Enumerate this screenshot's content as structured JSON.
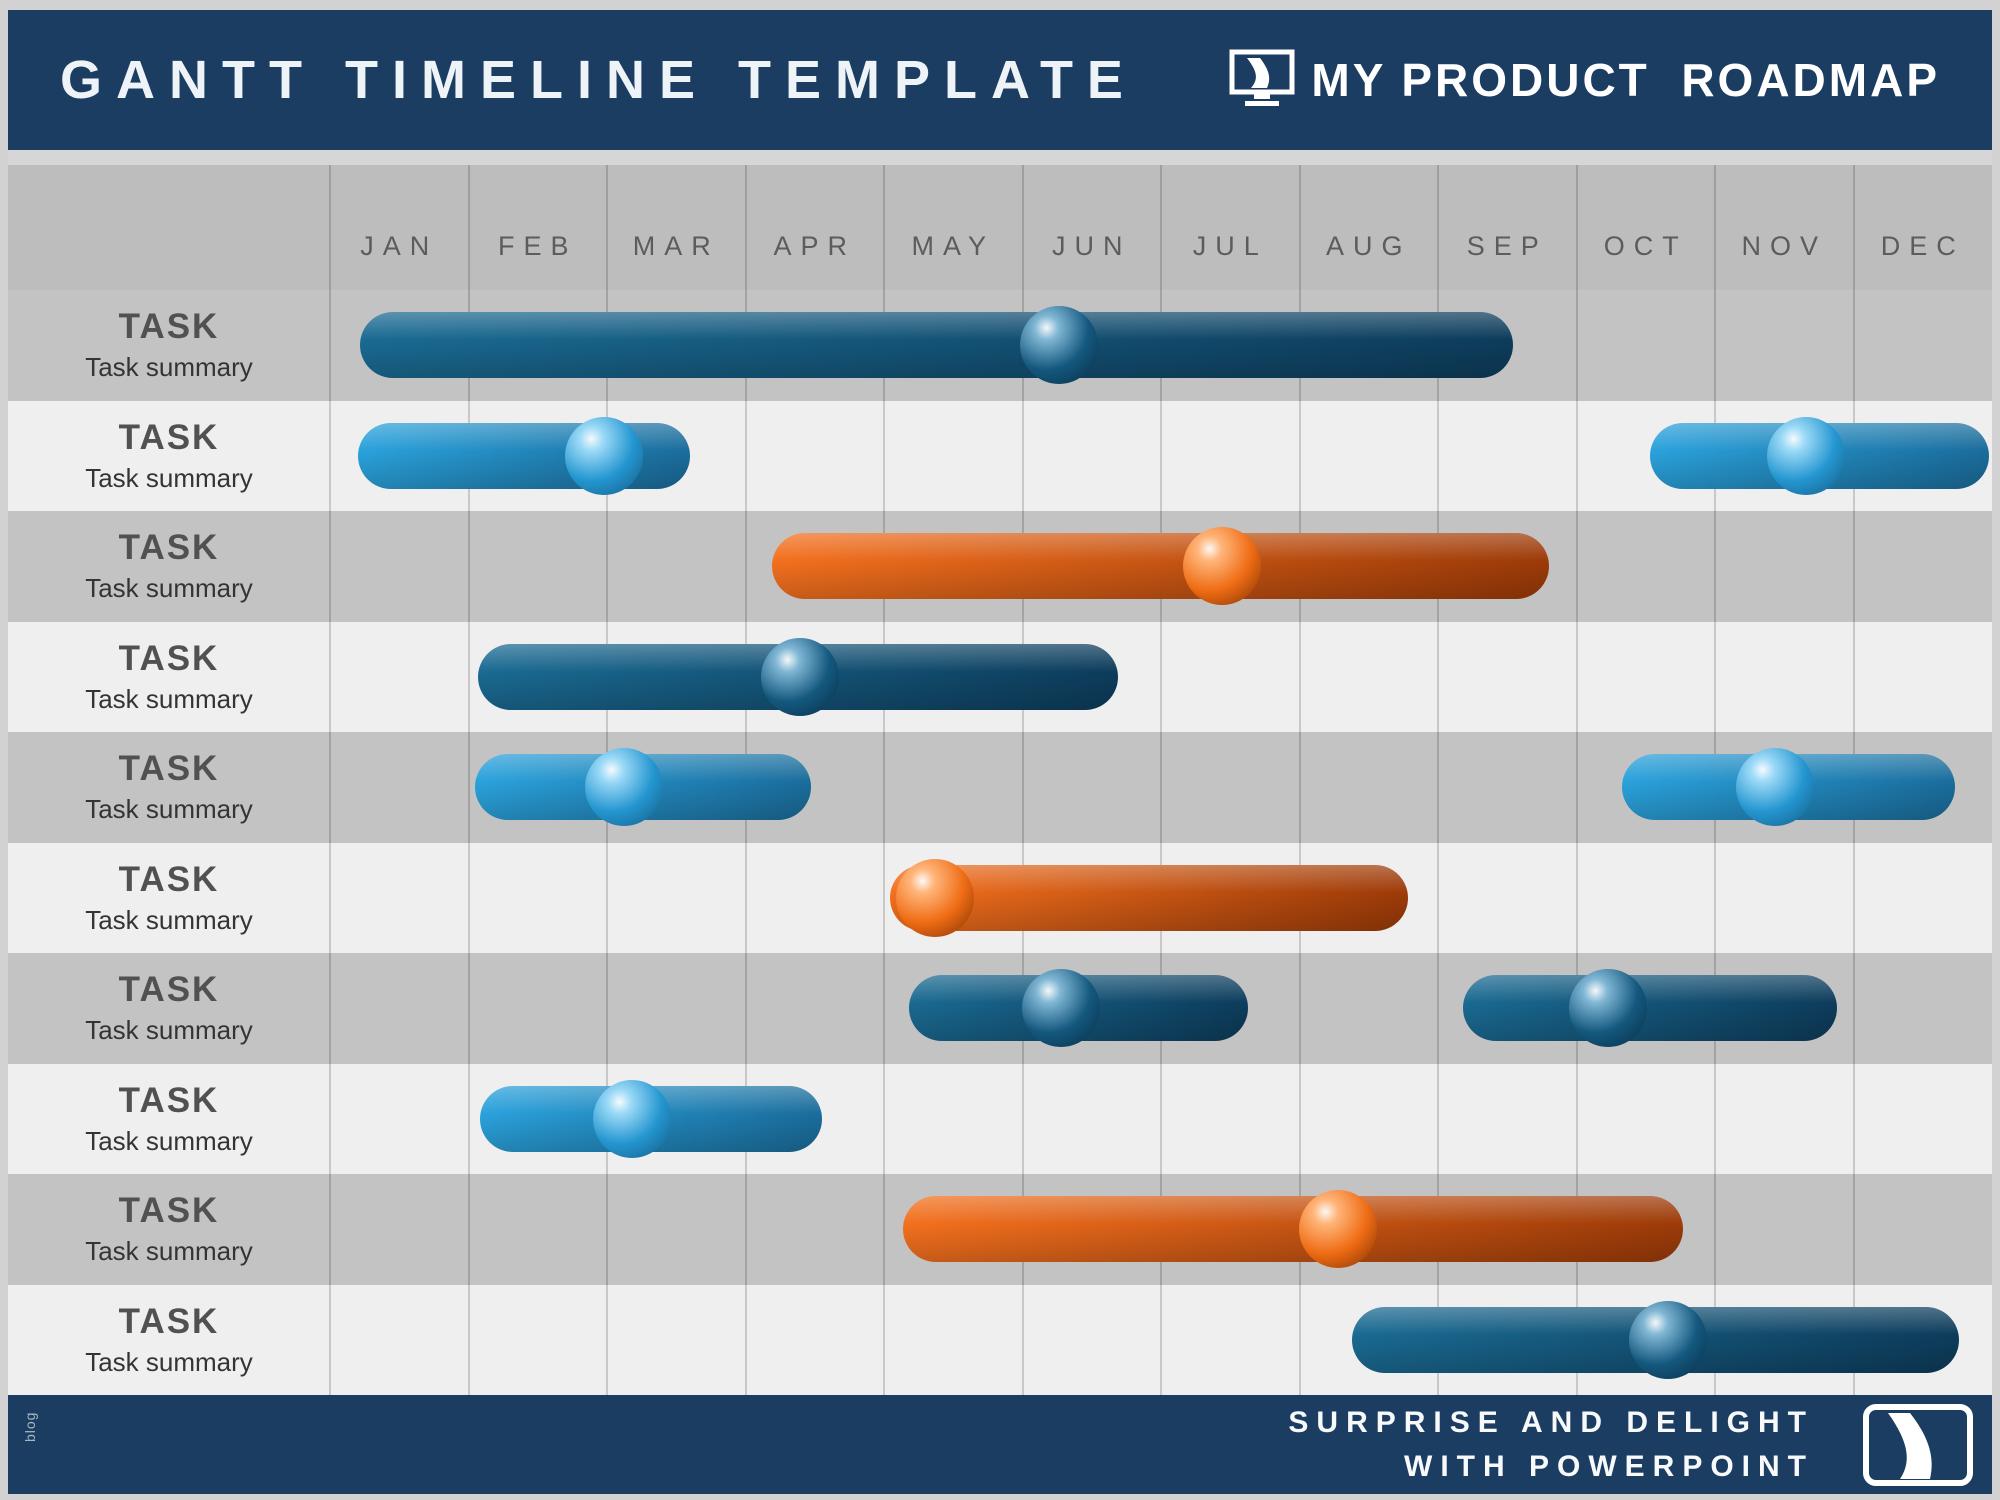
{
  "header": {
    "title": "GANTT TIMELINE TEMPLATE",
    "brand": "MY PRODUCT  ROADMAP"
  },
  "footer": {
    "line1": "SURPRISE AND DELIGHT",
    "line2": "WITH POWERPOINT",
    "side_label": "blog",
    "icon": "road-icon"
  },
  "colors": {
    "navy": "#1c3d62",
    "darkblue": {
      "from": "#1a6a92",
      "to": "#0d3c5b",
      "sphere": {
        "hl": "#7fb6d4",
        "base": "#14587e",
        "dk": "#082c44"
      }
    },
    "lightblue": {
      "from": "#2aa2dc",
      "to": "#1a6c9b",
      "sphere": {
        "hl": "#9ad9f7",
        "base": "#2496d0",
        "dk": "#135a85"
      }
    },
    "orange": {
      "from": "#f3701e",
      "to": "#9c3a08",
      "sphere": {
        "hl": "#ffb57a",
        "base": "#ef6c14",
        "dk": "#7e2f03"
      }
    }
  },
  "chart_data": {
    "type": "bar",
    "variant": "gantt",
    "title": "GANTT TIMELINE TEMPLATE",
    "x_categories": [
      "JAN",
      "FEB",
      "MAR",
      "APR",
      "MAY",
      "JUN",
      "JUL",
      "AUG",
      "SEP",
      "OCT",
      "NOV",
      "DEC"
    ],
    "x_range": [
      0,
      12
    ],
    "grid": true,
    "tasks": [
      {
        "label": "TASK",
        "summary": "Task summary",
        "bars": [
          {
            "color": "darkblue",
            "start": 0.22,
            "end": 8.54,
            "marker": 5.26
          }
        ]
      },
      {
        "label": "TASK",
        "summary": "Task summary",
        "bars": [
          {
            "color": "lightblue",
            "start": 0.2,
            "end": 2.6,
            "marker": 1.98
          },
          {
            "color": "lightblue",
            "start": 9.53,
            "end": 11.98,
            "marker": 10.66
          }
        ]
      },
      {
        "label": "TASK",
        "summary": "Task summary",
        "bars": [
          {
            "color": "orange",
            "start": 3.19,
            "end": 8.8,
            "marker": 6.44
          }
        ]
      },
      {
        "label": "TASK",
        "summary": "Task summary",
        "bars": [
          {
            "color": "darkblue",
            "start": 1.07,
            "end": 5.69,
            "marker": 3.39
          }
        ]
      },
      {
        "label": "TASK",
        "summary": "Task summary",
        "bars": [
          {
            "color": "lightblue",
            "start": 1.05,
            "end": 3.47,
            "marker": 2.12
          },
          {
            "color": "lightblue",
            "start": 9.33,
            "end": 11.73,
            "marker": 10.43
          }
        ]
      },
      {
        "label": "TASK",
        "summary": "Task summary",
        "bars": [
          {
            "color": "orange",
            "start": 4.04,
            "end": 7.78,
            "marker": 4.37
          }
        ]
      },
      {
        "label": "TASK",
        "summary": "Task summary",
        "bars": [
          {
            "color": "darkblue",
            "start": 4.18,
            "end": 6.63,
            "marker": 5.28
          },
          {
            "color": "darkblue",
            "start": 8.18,
            "end": 10.88,
            "marker": 9.23
          }
        ]
      },
      {
        "label": "TASK",
        "summary": "Task summary",
        "bars": [
          {
            "color": "lightblue",
            "start": 1.08,
            "end": 3.55,
            "marker": 2.18
          }
        ]
      },
      {
        "label": "TASK",
        "summary": "Task summary",
        "bars": [
          {
            "color": "orange",
            "start": 4.14,
            "end": 9.77,
            "marker": 7.28
          }
        ]
      },
      {
        "label": "TASK",
        "summary": "Task summary",
        "bars": [
          {
            "color": "darkblue",
            "start": 7.38,
            "end": 11.76,
            "marker": 9.66
          }
        ]
      }
    ]
  }
}
